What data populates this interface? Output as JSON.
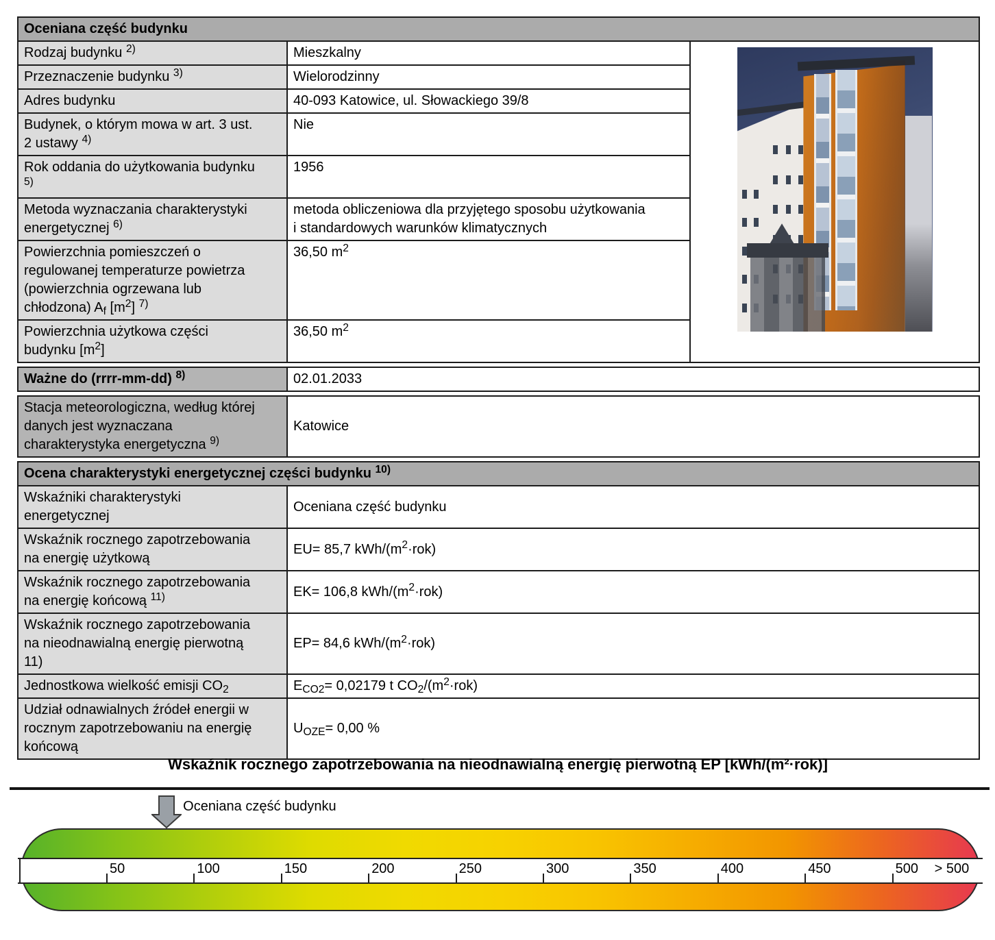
{
  "colors": {
    "header_bg": "#ababab",
    "label_bg": "#dcdcdc",
    "dark_label_bg": "#b4b4b4",
    "border": "#1c1c1c",
    "scale_gradient": [
      "#56b22a",
      "#86c317",
      "#b3cf0b",
      "#dedb00",
      "#f0da00",
      "#f7d200",
      "#f8c400",
      "#f6ad00",
      "#f29500",
      "#ec6520",
      "#e73950"
    ],
    "arrow_fill": "#9aa0a6",
    "arrow_stroke": "#3c3c3c"
  },
  "tables": {
    "section1": {
      "header": [
        {
          "t": "Oceniana część budynku"
        }
      ],
      "rows": [
        {
          "label": [
            {
              "t": "Rodzaj budynku "
            },
            {
              "t": "2)",
              "s": "sup"
            }
          ],
          "value": [
            {
              "t": "Mieszkalny"
            }
          ]
        },
        {
          "label": [
            {
              "t": "Przeznaczenie budynku "
            },
            {
              "t": "3)",
              "s": "sup"
            }
          ],
          "value": [
            {
              "t": "Wielorodzinny"
            }
          ]
        },
        {
          "label": [
            {
              "t": "Adres budynku"
            }
          ],
          "value": [
            {
              "t": "40-093 Katowice, ul. Słowackiego 39/8"
            }
          ]
        },
        {
          "label": [
            {
              "t": "Budynek, o którym mowa w art. 3 ust."
            },
            {
              "br": true
            },
            {
              "t": "2 ustawy "
            },
            {
              "t": "4)",
              "s": "sup"
            }
          ],
          "value": [
            {
              "t": "Nie"
            }
          ]
        },
        {
          "label": [
            {
              "t": "Rok oddania do użytkowania budynku"
            },
            {
              "br": true
            },
            {
              "t": " "
            },
            {
              "t": "5)",
              "s": "sup"
            }
          ],
          "value": [
            {
              "t": "1956"
            }
          ]
        },
        {
          "label": [
            {
              "t": "Metoda wyznaczania charakterystyki"
            },
            {
              "br": true
            },
            {
              "t": "energetycznej "
            },
            {
              "t": "6)",
              "s": "sup"
            }
          ],
          "value": [
            {
              "t": "metoda obliczeniowa dla przyjętego sposobu użytkowania"
            },
            {
              "br": true
            },
            {
              "t": "i standardowych warunków klimatycznych"
            }
          ]
        },
        {
          "label": [
            {
              "t": "Powierzchnia pomieszczeń o"
            },
            {
              "br": true
            },
            {
              "t": "regulowanej temperaturze powietrza"
            },
            {
              "br": true
            },
            {
              "t": "(powierzchnia ogrzewana lub"
            },
            {
              "br": true
            },
            {
              "t": "chłodzona) A"
            },
            {
              "t": "f",
              "s": "sub"
            },
            {
              "t": " [m"
            },
            {
              "t": "2",
              "s": "sup"
            },
            {
              "t": "] "
            },
            {
              "t": "7)",
              "s": "sup"
            }
          ],
          "value": [
            {
              "t": "36,50 m"
            },
            {
              "t": "2",
              "s": "sup"
            }
          ]
        },
        {
          "label": [
            {
              "t": "Powierzchnia użytkowa części"
            },
            {
              "br": true
            },
            {
              "t": "budynku [m"
            },
            {
              "t": "2",
              "s": "sup"
            },
            {
              "t": "]"
            }
          ],
          "value": [
            {
              "t": "36,50 m"
            },
            {
              "t": "2",
              "s": "sup"
            }
          ]
        }
      ]
    },
    "valid_to": {
      "label": [
        {
          "t": "Ważne do (rrrr-mm-dd) "
        },
        {
          "t": "8)",
          "s": "sup"
        }
      ],
      "value": [
        {
          "t": "02.01.2033"
        }
      ]
    },
    "station": {
      "label": [
        {
          "t": "Stacja meteorologiczna, według której"
        },
        {
          "br": true
        },
        {
          "t": "danych jest wyznaczana"
        },
        {
          "br": true
        },
        {
          "t": "charakterystyka energetyczna "
        },
        {
          "t": "9)",
          "s": "sup"
        }
      ],
      "value": [
        {
          "t": "Katowice"
        }
      ]
    },
    "section2": {
      "header": [
        {
          "t": "Ocena charakterystyki energetycznej części budynku "
        },
        {
          "t": "10)",
          "s": "sup"
        }
      ],
      "rows": [
        {
          "label": [
            {
              "t": "Wskaźniki charakterystyki"
            },
            {
              "br": true
            },
            {
              "t": "energetycznej"
            }
          ],
          "value": [
            {
              "t": "Oceniana część budynku"
            }
          ]
        },
        {
          "label": [
            {
              "t": "Wskaźnik rocznego zapotrzebowania"
            },
            {
              "br": true
            },
            {
              "t": "na energię użytkową"
            }
          ],
          "value": [
            {
              "t": "EU= 85,7 kWh/(m"
            },
            {
              "t": "2",
              "s": "sup"
            },
            {
              "t": "·rok)"
            }
          ]
        },
        {
          "label": [
            {
              "t": "Wskaźnik rocznego zapotrzebowania"
            },
            {
              "br": true
            },
            {
              "t": "na energię końcową "
            },
            {
              "t": "11)",
              "s": "sup"
            }
          ],
          "value": [
            {
              "t": "EK= 106,8 kWh/(m"
            },
            {
              "t": "2",
              "s": "sup"
            },
            {
              "t": "·rok)"
            }
          ]
        },
        {
          "label": [
            {
              "t": "Wskaźnik rocznego zapotrzebowania"
            },
            {
              "br": true
            },
            {
              "t": "na nieodnawialną energię pierwotną"
            },
            {
              "br": true
            },
            {
              "t": "11)"
            }
          ],
          "value": [
            {
              "t": "EP= 84,6 kWh/(m"
            },
            {
              "t": "2",
              "s": "sup"
            },
            {
              "t": "·rok)"
            }
          ]
        },
        {
          "label": [
            {
              "t": "Jednostkowa wielkość emisji CO"
            },
            {
              "t": "2",
              "s": "sub"
            }
          ],
          "value": [
            {
              "t": "E"
            },
            {
              "t": "CO2",
              "s": "sub"
            },
            {
              "t": "= 0,02179 t CO"
            },
            {
              "t": "2",
              "s": "sub"
            },
            {
              "t": "/(m"
            },
            {
              "t": "2",
              "s": "sup"
            },
            {
              "t": "·rok)"
            }
          ]
        },
        {
          "label": [
            {
              "t": "Udział odnawialnych źródeł energii w"
            },
            {
              "br": true
            },
            {
              "t": "rocznym zapotrzebowaniu na energię"
            },
            {
              "br": true
            },
            {
              "t": "końcową"
            }
          ],
          "value": [
            {
              "t": "U"
            },
            {
              "t": "OZE",
              "s": "sub"
            },
            {
              "t": "= 0,00 %"
            }
          ]
        }
      ]
    }
  },
  "photo": {
    "name": "building-photo"
  },
  "chart": {
    "type": "scale",
    "title": "Wskaźnik rocznego zapotrzebowania na nieodnawialną energię pierwotną EP [kWh/(m²·rok)]",
    "marker_label": "Oceniana część budynku",
    "marker_value": 84.6,
    "axis_ticks": [
      50,
      100,
      150,
      200,
      250,
      300,
      350,
      400,
      450,
      500
    ],
    "overflow_label": "> 500",
    "axis_range": [
      0,
      500
    ]
  }
}
